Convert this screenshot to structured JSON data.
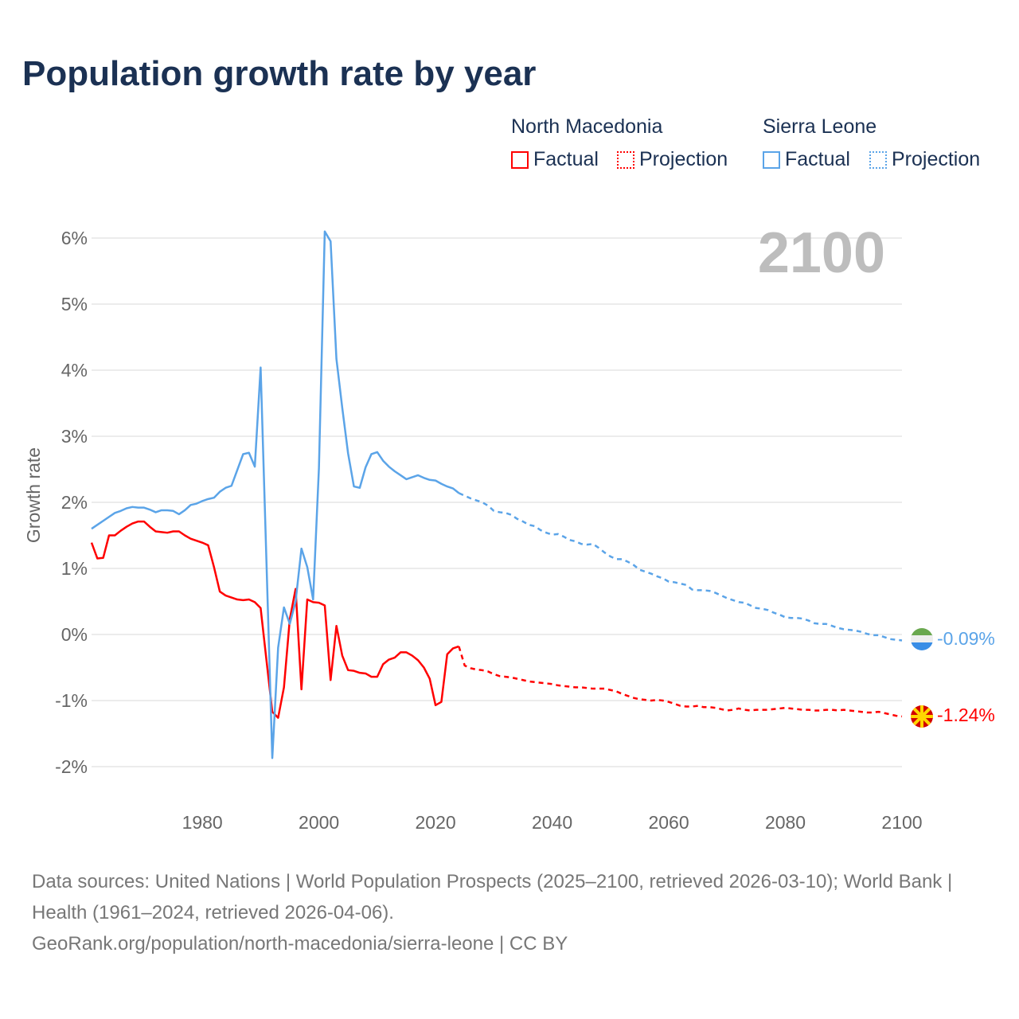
{
  "title": "Population growth rate by year",
  "legend": {
    "groups": [
      {
        "country": "North Macedonia",
        "factual": "Factual",
        "projection": "Projection",
        "color": "#ff0000"
      },
      {
        "country": "Sierra Leone",
        "factual": "Factual",
        "projection": "Projection",
        "color": "#5ba4e8"
      }
    ]
  },
  "year_watermark": "2100",
  "end_labels": {
    "sierra_leone": "-0.09%",
    "north_macedonia": "-1.24%"
  },
  "footer": {
    "line1": "Data sources: United Nations | World Population Prospects (2025–2100, retrieved 2026-03-10); World Bank | Health (1961–2024, retrieved 2026-04-06).",
    "line2": "GeoRank.org/population/north-macedonia/sierra-leone | CC BY"
  },
  "chart_data": {
    "type": "line",
    "title": "Population growth rate by year",
    "xlabel": "",
    "ylabel": "Growth rate",
    "xlim": [
      1961,
      2100
    ],
    "ylim": [
      -2.4,
      6.4
    ],
    "yticks": [
      -2,
      -1,
      0,
      1,
      2,
      3,
      4,
      5,
      6
    ],
    "ytick_labels": [
      "-2%",
      "-1%",
      "0%",
      "1%",
      "2%",
      "3%",
      "4%",
      "5%",
      "6%"
    ],
    "xticks": [
      1980,
      2000,
      2020,
      2040,
      2060,
      2080,
      2100
    ],
    "xtick_labels": [
      "1980",
      "2000",
      "2020",
      "2040",
      "2060",
      "2080",
      "2100"
    ],
    "grid": true,
    "series": [
      {
        "name": "North Macedonia",
        "color": "#ff0000",
        "factual_start": 1961,
        "factual": [
          1.39,
          1.15,
          1.16,
          1.5,
          1.5,
          1.57,
          1.63,
          1.68,
          1.71,
          1.71,
          1.63,
          1.56,
          1.55,
          1.54,
          1.56,
          1.56,
          1.5,
          1.45,
          1.42,
          1.39,
          1.35,
          1.02,
          0.65,
          0.59,
          0.56,
          0.53,
          0.52,
          0.53,
          0.49,
          0.4,
          -0.39,
          -1.17,
          -1.26,
          -0.8,
          0.23,
          0.69,
          -0.83,
          0.53,
          0.49,
          0.48,
          0.44,
          -0.69,
          0.13,
          -0.32,
          -0.54,
          -0.55,
          -0.58,
          -0.59,
          -0.64,
          -0.64,
          -0.45,
          -0.38,
          -0.35,
          -0.27,
          -0.27,
          -0.32,
          -0.39,
          -0.5,
          -0.67,
          -1.07,
          -1.02,
          -0.3,
          -0.21,
          -0.18
        ],
        "projection_start": 2025,
        "projection": [
          -0.47,
          -0.51,
          -0.53,
          -0.54,
          -0.56,
          -0.6,
          -0.63,
          -0.64,
          -0.65,
          -0.67,
          -0.69,
          -0.71,
          -0.72,
          -0.73,
          -0.74,
          -0.75,
          -0.77,
          -0.78,
          -0.79,
          -0.8,
          -0.8,
          -0.81,
          -0.82,
          -0.82,
          -0.82,
          -0.84,
          -0.86,
          -0.9,
          -0.93,
          -0.96,
          -0.98,
          -0.99,
          -1.0,
          -0.99,
          -1.0,
          -1.02,
          -1.05,
          -1.08,
          -1.09,
          -1.09,
          -1.08,
          -1.1,
          -1.1,
          -1.11,
          -1.13,
          -1.15,
          -1.14,
          -1.12,
          -1.14,
          -1.15,
          -1.14,
          -1.14,
          -1.14,
          -1.13,
          -1.12,
          -1.11,
          -1.12,
          -1.13,
          -1.14,
          -1.14,
          -1.15,
          -1.15,
          -1.14,
          -1.14,
          -1.15,
          -1.14,
          -1.15,
          -1.16,
          -1.17,
          -1.18,
          -1.18,
          -1.17,
          -1.19,
          -1.21,
          -1.23,
          -1.24
        ]
      },
      {
        "name": "Sierra Leone",
        "color": "#5ba4e8",
        "factual_start": 1961,
        "factual": [
          1.6,
          1.66,
          1.72,
          1.78,
          1.84,
          1.87,
          1.91,
          1.93,
          1.92,
          1.92,
          1.89,
          1.85,
          1.88,
          1.88,
          1.87,
          1.82,
          1.88,
          1.96,
          1.98,
          2.02,
          2.05,
          2.07,
          2.16,
          2.22,
          2.25,
          2.49,
          2.73,
          2.75,
          2.54,
          4.04,
          1.1,
          -1.87,
          -0.2,
          0.41,
          0.16,
          0.5,
          1.3,
          1.02,
          0.53,
          2.52,
          6.1,
          5.95,
          4.17,
          3.43,
          2.74,
          2.24,
          2.22,
          2.53,
          2.73,
          2.76,
          2.63,
          2.54,
          2.47,
          2.41,
          2.35,
          2.38,
          2.41,
          2.37,
          2.34,
          2.33,
          2.28,
          2.24,
          2.21,
          2.14
        ],
        "projection_start": 2025,
        "projection": [
          2.1,
          2.06,
          2.03,
          2.0,
          1.95,
          1.87,
          1.85,
          1.84,
          1.81,
          1.75,
          1.71,
          1.66,
          1.64,
          1.58,
          1.54,
          1.51,
          1.52,
          1.48,
          1.43,
          1.41,
          1.37,
          1.36,
          1.37,
          1.31,
          1.24,
          1.18,
          1.14,
          1.14,
          1.1,
          1.05,
          0.98,
          0.95,
          0.92,
          0.88,
          0.85,
          0.8,
          0.79,
          0.77,
          0.75,
          0.68,
          0.67,
          0.67,
          0.66,
          0.63,
          0.59,
          0.55,
          0.52,
          0.49,
          0.48,
          0.44,
          0.4,
          0.39,
          0.37,
          0.33,
          0.3,
          0.26,
          0.25,
          0.25,
          0.24,
          0.21,
          0.17,
          0.16,
          0.16,
          0.13,
          0.1,
          0.08,
          0.07,
          0.06,
          0.04,
          0.01,
          -0.01,
          -0.01,
          -0.04,
          -0.07,
          -0.08,
          -0.09
        ]
      }
    ]
  }
}
